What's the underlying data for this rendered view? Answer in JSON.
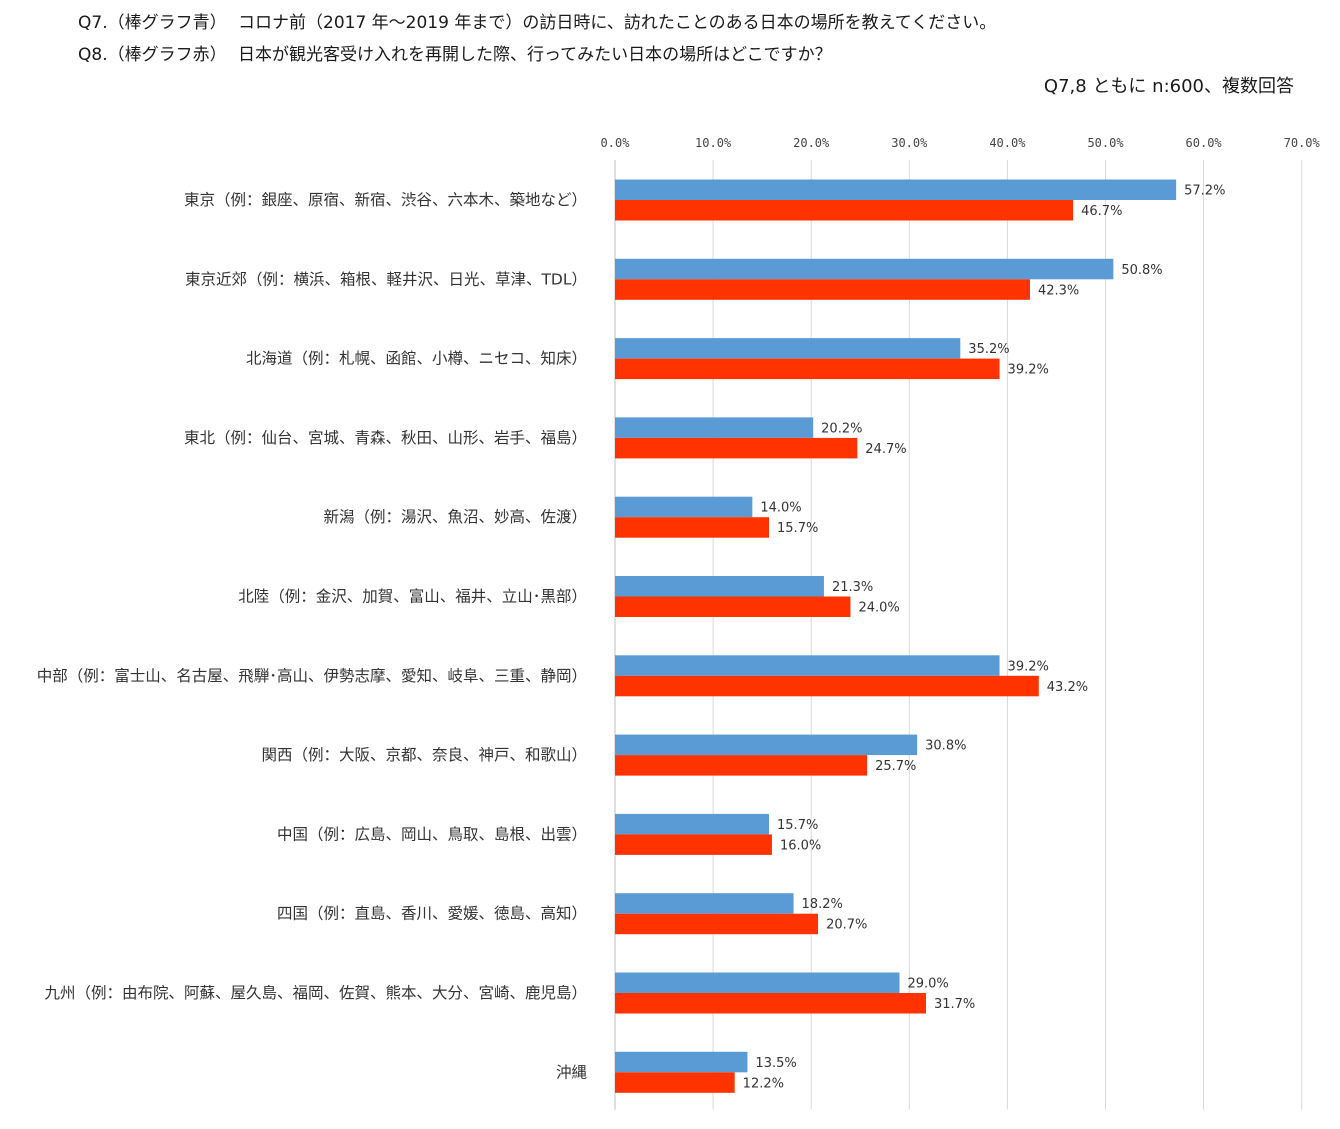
{
  "header": {
    "q7_id": "Q7.（棒グラフ青）",
    "q7_text": "コロナ前（2017 年～2019 年まで）の訪日時に、訪れたことのある日本の場所を教えてください。",
    "q8_id": "Q8.（棒グラフ赤）",
    "q8_text": "日本が観光客受け入れを再開した際、行ってみたい日本の場所はどこですか？",
    "note": "Q7,8 ともに n:600、複数回答"
  },
  "chart_data": {
    "type": "bar",
    "orientation": "horizontal",
    "xlim": [
      0,
      70
    ],
    "x_ticks": [
      "0.0%",
      "10.0%",
      "20.0%",
      "30.0%",
      "40.0%",
      "50.0%",
      "60.0%",
      "70.0%"
    ],
    "x_tick_values": [
      0,
      10,
      20,
      30,
      40,
      50,
      60,
      70
    ],
    "grid": true,
    "categories": [
      "東京（例：銀座、原宿、新宿、渋谷、六本木、築地など）",
      "東京近郊（例：横浜、箱根、軽井沢、日光、草津、TDL）",
      "北海道（例：札幌、函館、小樽、ニセコ、知床）",
      "東北（例：仙台、宮城、青森、秋田、山形、岩手、福島）",
      "新潟（例：湯沢、魚沼、妙高、佐渡）",
      "北陸（例：金沢、加賀、富山、福井、立山･黒部）",
      "中部（例：富士山、名古屋、飛騨･高山、伊勢志摩、愛知、岐阜、三重、静岡）",
      "関西（例：大阪、京都、奈良、神戸、和歌山）",
      "中国（例：広島、岡山、鳥取、島根、出雲）",
      "四国（例：直島、香川、愛媛、徳島、高知）",
      "九州（例：由布院、阿蘇、屋久島、福岡、佐賀、熊本、大分、宮崎、鹿児島）",
      "沖縄"
    ],
    "series": [
      {
        "color": "#5B9BD5",
        "values": [
          57.2,
          50.8,
          35.2,
          20.2,
          14.0,
          21.3,
          39.2,
          30.8,
          15.7,
          18.2,
          29.0,
          13.5
        ],
        "labels": [
          "57.2%",
          "50.8%",
          "35.2%",
          "20.2%",
          "14.0%",
          "21.3%",
          "39.2%",
          "30.8%",
          "15.7%",
          "18.2%",
          "29.0%",
          "13.5%"
        ]
      },
      {
        "color": "#FF3300",
        "values": [
          46.7,
          42.3,
          39.2,
          24.7,
          15.7,
          24.0,
          43.2,
          25.7,
          16.0,
          20.7,
          31.7,
          12.2
        ],
        "labels": [
          "46.7%",
          "42.3%",
          "39.2%",
          "24.7%",
          "15.7%",
          "24.0%",
          "43.2%",
          "25.7%",
          "16.0%",
          "20.7%",
          "31.7%",
          "12.2%"
        ]
      }
    ]
  }
}
